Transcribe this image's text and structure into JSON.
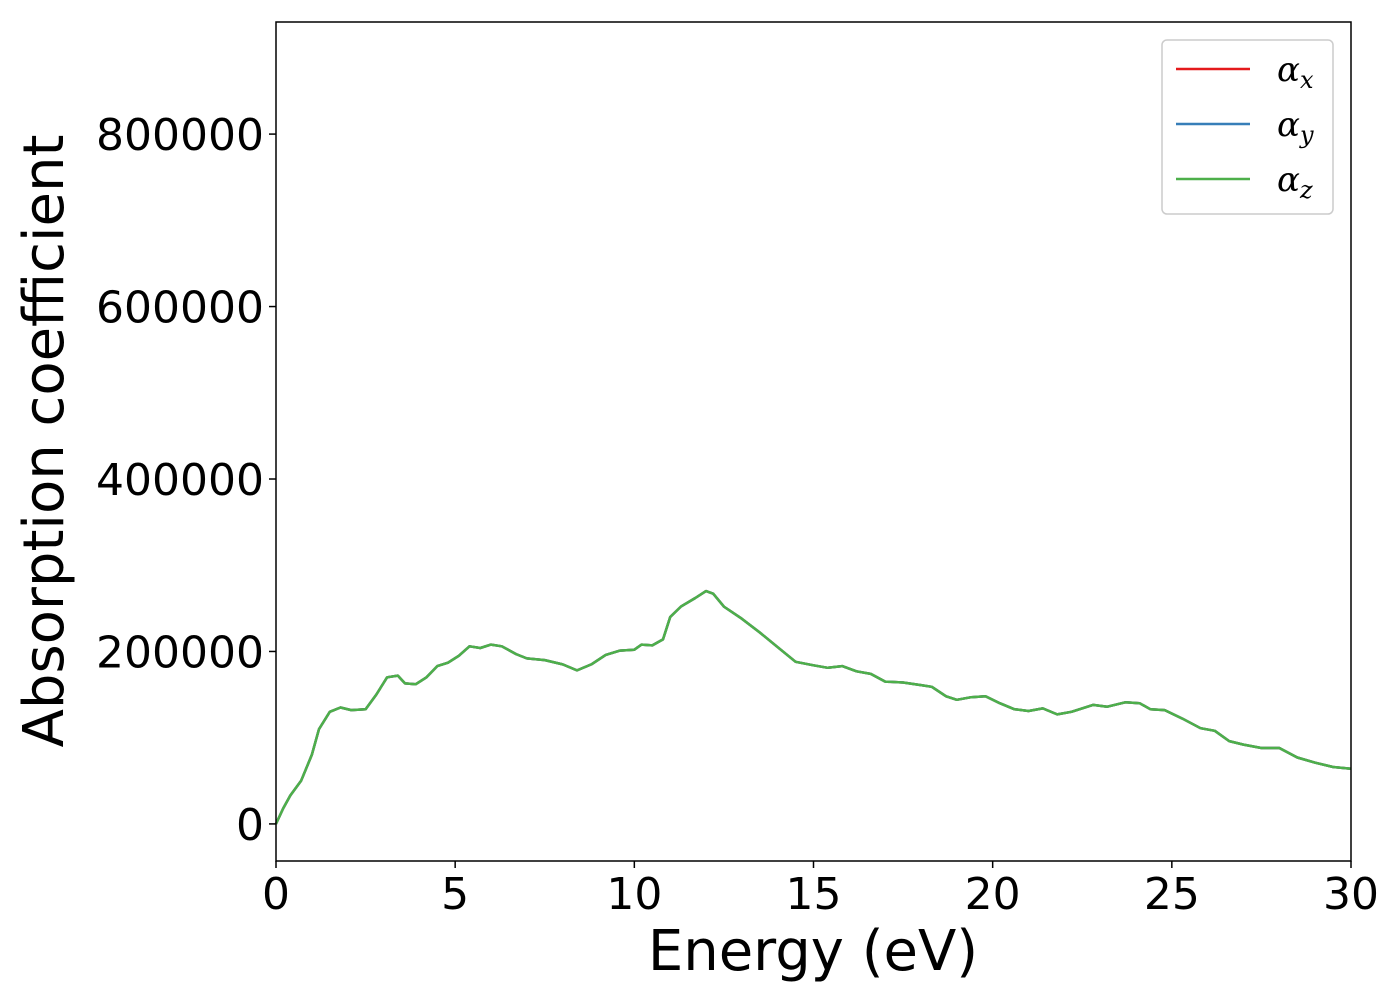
{
  "chart_data": {
    "type": "line",
    "xlabel": "Energy (eV)",
    "ylabel": "Absorption coefficient",
    "xlim": [
      0,
      30
    ],
    "ylim": [
      -43000,
      930000
    ],
    "xticks": [
      0,
      5,
      10,
      15,
      20,
      25,
      30
    ],
    "xtick_labels": [
      "0",
      "5",
      "10",
      "15",
      "20",
      "25",
      "30"
    ],
    "yticks": [
      0,
      200000,
      400000,
      600000,
      800000
    ],
    "ytick_labels": [
      "0",
      "200000",
      "400000",
      "600000",
      "800000"
    ],
    "grid": false,
    "legend_position": "top-right",
    "x": [
      0,
      0.2,
      0.4,
      0.7,
      1.0,
      1.2,
      1.5,
      1.8,
      2.1,
      2.5,
      2.8,
      3.1,
      3.4,
      3.6,
      3.9,
      4.2,
      4.5,
      4.8,
      5.1,
      5.4,
      5.7,
      6.0,
      6.3,
      6.7,
      7.0,
      7.5,
      8.0,
      8.4,
      8.8,
      9.2,
      9.6,
      10.0,
      10.2,
      10.5,
      10.8,
      11.0,
      11.3,
      11.7,
      12.0,
      12.2,
      12.5,
      13.0,
      13.5,
      14.0,
      14.5,
      15.0,
      15.4,
      15.8,
      16.2,
      16.6,
      17.0,
      17.5,
      18.0,
      18.3,
      18.7,
      19.0,
      19.4,
      19.8,
      20.2,
      20.6,
      21.0,
      21.4,
      21.8,
      22.2,
      22.8,
      23.2,
      23.7,
      24.1,
      24.4,
      24.8,
      25.3,
      25.8,
      26.2,
      26.6,
      27.0,
      27.5,
      28.0,
      28.5,
      29.0,
      29.5,
      30.0
    ],
    "series": [
      {
        "name": "α_x",
        "legend_label": "α",
        "legend_sub": "x",
        "color": "#e41a1c",
        "values": [
          0,
          18000,
          33000,
          50000,
          80000,
          110000,
          130000,
          135000,
          132000,
          133000,
          150000,
          170000,
          172000,
          163000,
          162000,
          170000,
          183000,
          187000,
          195000,
          206000,
          204000,
          208000,
          206000,
          197000,
          192000,
          190000,
          185000,
          178000,
          185000,
          196000,
          201000,
          202000,
          208000,
          207000,
          214000,
          240000,
          252000,
          262000,
          270000,
          267000,
          252000,
          238000,
          222000,
          205000,
          188000,
          184000,
          181000,
          183000,
          177000,
          174000,
          165000,
          164000,
          161000,
          159000,
          148000,
          144000,
          147000,
          148000,
          140000,
          133000,
          131000,
          134000,
          127000,
          130000,
          138000,
          136000,
          141000,
          140000,
          133000,
          132000,
          122000,
          111000,
          108000,
          96000,
          92000,
          88000,
          88000,
          77000,
          71000,
          66000,
          64000
        ]
      },
      {
        "name": "α_y",
        "legend_label": "α",
        "legend_sub": "y",
        "color": "#377eb8",
        "values": [
          0,
          18000,
          33000,
          50000,
          80000,
          110000,
          130000,
          135000,
          132000,
          133000,
          150000,
          170000,
          172000,
          163000,
          162000,
          170000,
          183000,
          187000,
          195000,
          206000,
          204000,
          208000,
          206000,
          197000,
          192000,
          190000,
          185000,
          178000,
          185000,
          196000,
          201000,
          202000,
          208000,
          207000,
          214000,
          240000,
          252000,
          262000,
          270000,
          267000,
          252000,
          238000,
          222000,
          205000,
          188000,
          184000,
          181000,
          183000,
          177000,
          174000,
          165000,
          164000,
          161000,
          159000,
          148000,
          144000,
          147000,
          148000,
          140000,
          133000,
          131000,
          134000,
          127000,
          130000,
          138000,
          136000,
          141000,
          140000,
          133000,
          132000,
          122000,
          111000,
          108000,
          96000,
          92000,
          88000,
          88000,
          77000,
          71000,
          66000,
          64000
        ]
      },
      {
        "name": "α_z",
        "legend_label": "α",
        "legend_sub": "z",
        "color": "#4daf4a",
        "values": [
          0,
          18000,
          33000,
          50000,
          80000,
          110000,
          130000,
          135000,
          132000,
          133000,
          150000,
          170000,
          172000,
          163000,
          162000,
          170000,
          183000,
          187000,
          195000,
          206000,
          204000,
          208000,
          206000,
          197000,
          192000,
          190000,
          185000,
          178000,
          185000,
          196000,
          201000,
          202000,
          208000,
          207000,
          214000,
          240000,
          252000,
          262000,
          270000,
          267000,
          252000,
          238000,
          222000,
          205000,
          188000,
          184000,
          181000,
          183000,
          177000,
          174000,
          165000,
          164000,
          161000,
          159000,
          148000,
          144000,
          147000,
          148000,
          140000,
          133000,
          131000,
          134000,
          127000,
          130000,
          138000,
          136000,
          141000,
          140000,
          133000,
          132000,
          122000,
          111000,
          108000,
          96000,
          92000,
          88000,
          88000,
          77000,
          71000,
          66000,
          64000
        ]
      }
    ]
  }
}
